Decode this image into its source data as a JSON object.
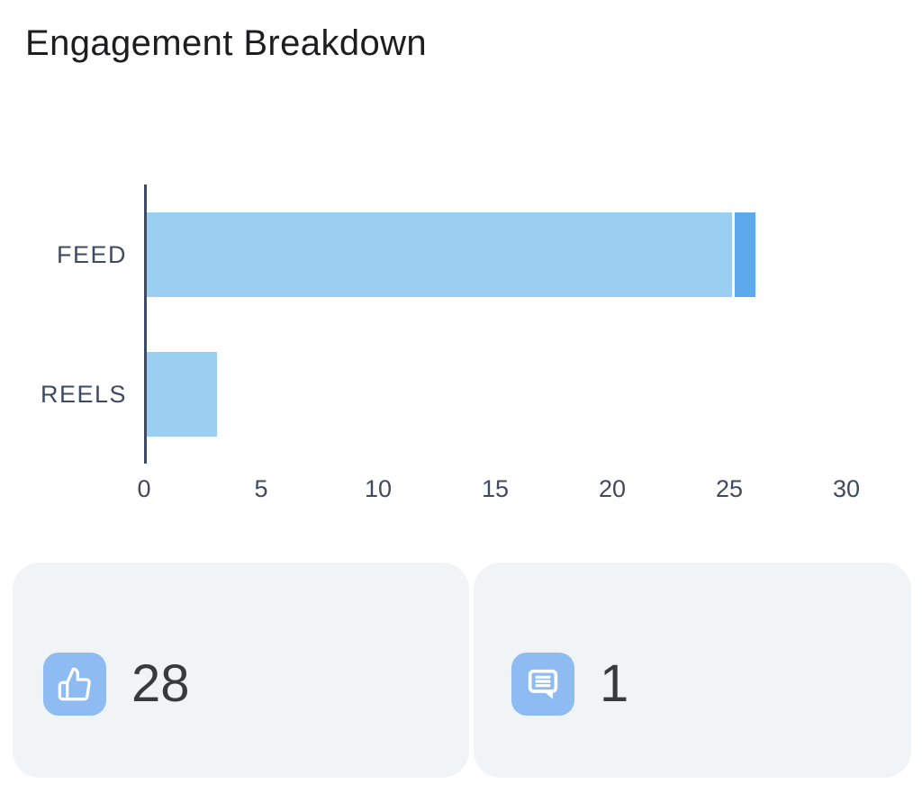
{
  "title": "Engagement Breakdown",
  "chart_data": {
    "type": "bar",
    "orientation": "horizontal",
    "stacked": true,
    "title": "Engagement Breakdown",
    "categories": [
      "FEED",
      "REELS"
    ],
    "series": [
      {
        "name": "likes",
        "color": "#9bcff2",
        "values": [
          25,
          3
        ]
      },
      {
        "name": "comments",
        "color": "#5ca9ee",
        "values": [
          1,
          0
        ]
      }
    ],
    "totals": [
      26,
      3
    ],
    "xlim": [
      0,
      30
    ],
    "xticks": [
      "0",
      "5",
      "10",
      "15",
      "20",
      "25",
      "30"
    ],
    "xtick_values": [
      0,
      5,
      10,
      15,
      20,
      25,
      30
    ],
    "grid": false,
    "legend_position": "none"
  },
  "stats": {
    "likes": {
      "icon": "thumbs-up-icon",
      "value": "28"
    },
    "comments": {
      "icon": "comment-icon",
      "value": "1"
    }
  },
  "colors": {
    "bar_primary": "#9bcff2",
    "bar_secondary": "#5ca9ee",
    "axis_text": "#3e4a63",
    "axis_line": "#3e4a63",
    "title_text": "#1d1d1f",
    "stat_icon_bg": "#8ebcf2",
    "card_bg": "#f0f4f6",
    "stat_value_text": "#3a3a3c"
  }
}
